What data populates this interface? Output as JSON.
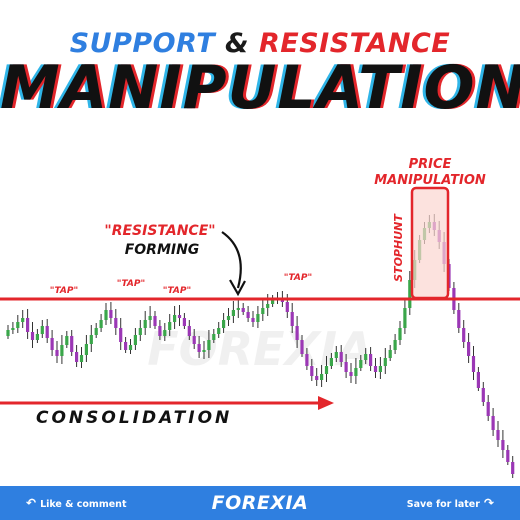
{
  "header": {
    "title_part1": "SUPPORT",
    "title_amp": "&",
    "title_part2": "RESISTANCE",
    "headline": "MANIPULATION"
  },
  "chart_data": {
    "type": "candlestick",
    "annotations": {
      "price_manipulation": "PRICE MANIPULATION",
      "resistance_forming_1": "\"RESISTANCE\"",
      "resistance_forming_2": "FORMING",
      "stophunt": "STOPHUNT",
      "consolidation": "CONSOLIDATION",
      "taps": [
        "\"TAP\"",
        "\"TAP\"",
        "\"TAP\"",
        "\"TAP\""
      ]
    },
    "watermark": "FOREXIA",
    "colors": {
      "bullish": "#3aa64a",
      "bearish": "#9b37b5",
      "accent": "#e3262b",
      "highlight_fill": "#fbd5d0"
    }
  },
  "footer": {
    "left_label": "Like & comment",
    "brand": "FOREXIA",
    "right_label": "Save for later"
  }
}
